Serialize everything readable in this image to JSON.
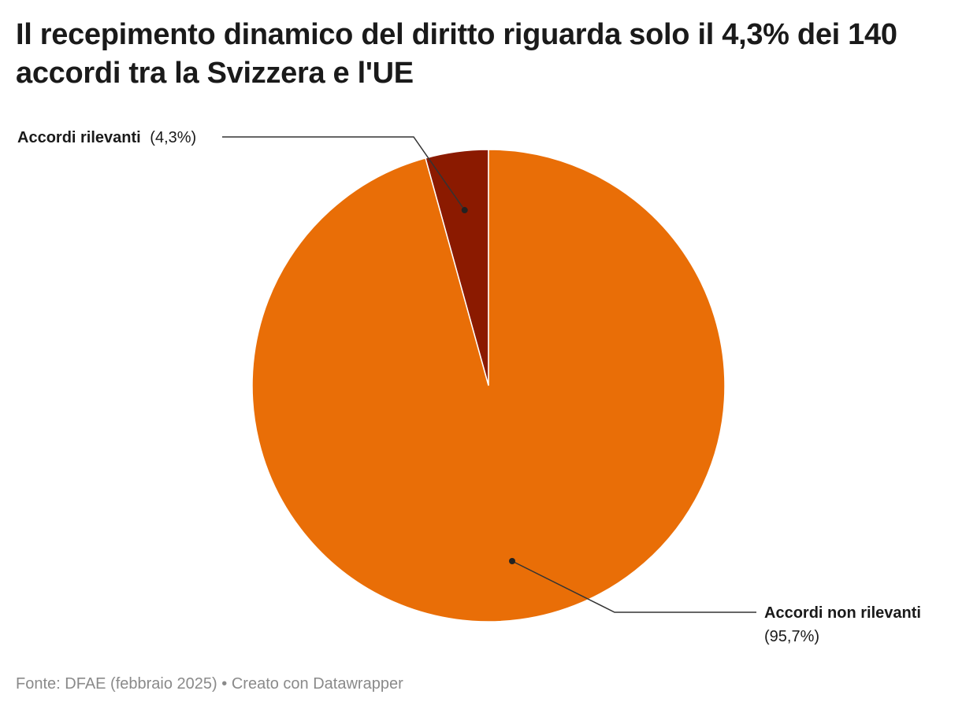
{
  "title": "Il recepimento dinamico del diritto riguarda solo il 4,3% dei 140 accordi tra la Svizzera e l'UE",
  "footer": {
    "source": "Fonte: DFAE (febbraio 2025)",
    "separator": "•",
    "credit": "Creato con Datawrapper"
  },
  "chart_data": {
    "type": "pie",
    "slices": [
      {
        "label": "Accordi rilevanti",
        "value": 4.3,
        "value_label": "(4,3%)",
        "color": "#8b1a00"
      },
      {
        "label": "Accordi non rilevanti",
        "value": 95.7,
        "value_label": "(95,7%)",
        "color": "#e96e07"
      }
    ]
  }
}
